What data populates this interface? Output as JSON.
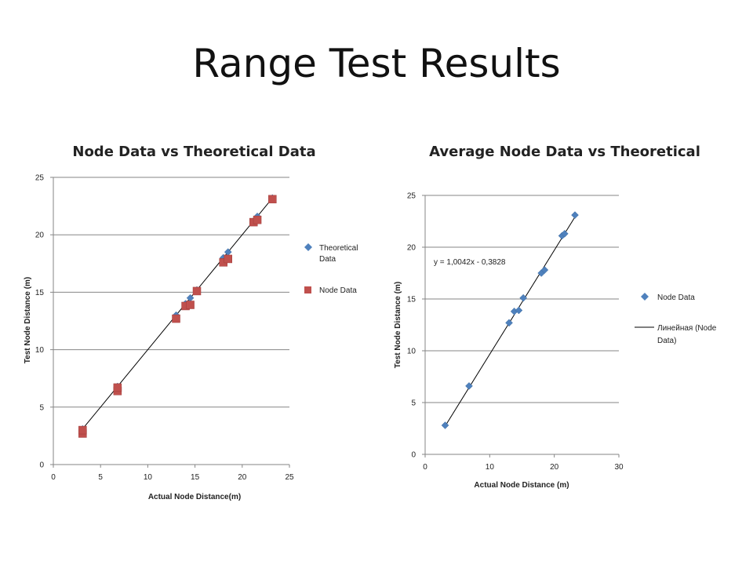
{
  "slide_title": "Range Test Results",
  "chart_data": [
    {
      "type": "scatter",
      "title": "Node Data vs Theoretical Data",
      "xlabel": "Actual Node Distance(m)",
      "ylabel": "Test Node Distance  (m)",
      "xlim": [
        0,
        25
      ],
      "ylim": [
        0,
        25
      ],
      "xticks": [
        "0",
        "5",
        "10",
        "15",
        "20",
        "25"
      ],
      "yticks": [
        "0",
        "5",
        "10",
        "15",
        "20",
        "25"
      ],
      "grid": "horizontal",
      "legend_position": "right",
      "series": [
        {
          "name": "Theoretical Data",
          "marker": "diamond",
          "color": "#4f81bd",
          "line": true,
          "points": [
            [
              3.1,
              3.1
            ],
            [
              6.8,
              6.8
            ],
            [
              13.0,
              13.0
            ],
            [
              14.0,
              14.0
            ],
            [
              14.5,
              14.5
            ],
            [
              15.2,
              15.2
            ],
            [
              18.0,
              18.0
            ],
            [
              18.5,
              18.5
            ],
            [
              21.2,
              21.2
            ],
            [
              21.6,
              21.6
            ],
            [
              23.2,
              23.2
            ]
          ]
        },
        {
          "name": "Node Data",
          "marker": "square",
          "color": "#c0504d",
          "line": false,
          "points": [
            [
              3.1,
              2.7
            ],
            [
              3.1,
              3.0
            ],
            [
              6.8,
              6.4
            ],
            [
              6.8,
              6.7
            ],
            [
              13.0,
              12.7
            ],
            [
              14.0,
              13.8
            ],
            [
              14.5,
              13.9
            ],
            [
              15.2,
              15.1
            ],
            [
              18.0,
              17.6
            ],
            [
              18.5,
              17.9
            ],
            [
              21.2,
              21.1
            ],
            [
              21.6,
              21.3
            ],
            [
              23.2,
              23.1
            ]
          ]
        }
      ]
    },
    {
      "type": "scatter",
      "title": "Average Node Data vs Theoretical",
      "xlabel": "Actual Node Distance  (m)",
      "ylabel": "Test Node Distance  (m)",
      "xlim": [
        0,
        30
      ],
      "ylim": [
        0,
        25
      ],
      "xticks": [
        "0",
        "10",
        "20",
        "30"
      ],
      "yticks": [
        "0",
        "5",
        "10",
        "15",
        "20",
        "25"
      ],
      "grid": "horizontal",
      "legend_position": "right",
      "annotation": "y = 1,0042x - 0,3828",
      "trendline": {
        "slope": 1.0042,
        "intercept": -0.3828,
        "x_range": [
          3.1,
          23.2
        ],
        "label": "Линейная (Node Data)",
        "color": "#000000"
      },
      "series": [
        {
          "name": "Node Data",
          "marker": "diamond",
          "color": "#4f81bd",
          "points": [
            [
              3.1,
              2.8
            ],
            [
              6.8,
              6.6
            ],
            [
              13.0,
              12.7
            ],
            [
              13.8,
              13.8
            ],
            [
              14.5,
              13.9
            ],
            [
              15.2,
              15.1
            ],
            [
              18.0,
              17.5
            ],
            [
              18.5,
              17.8
            ],
            [
              21.2,
              21.1
            ],
            [
              21.6,
              21.3
            ],
            [
              23.2,
              23.1
            ]
          ]
        }
      ]
    }
  ]
}
